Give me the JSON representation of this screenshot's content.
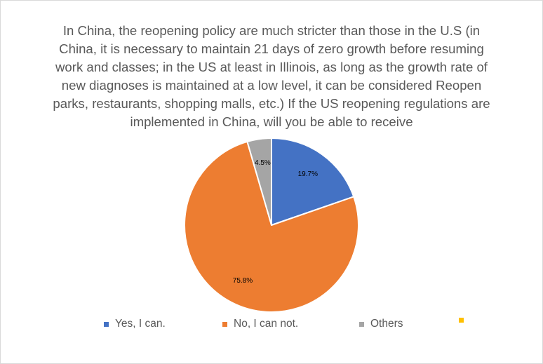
{
  "chart_data": {
    "type": "pie",
    "title_lines": [
      "In China, the reopening policy are much stricter than those in the U.S (in",
      "China, it is necessary to maintain 21 days of zero growth before resuming",
      "work and classes; in the US at least in Illinois, as long as the growth rate of",
      "new diagnoses is maintained at a low level, it can be considered  Reopen",
      "parks, restaurants, shopping malls, etc.) If the US reopening regulations are",
      "implemented in China, will you be able to receive"
    ],
    "slices": [
      {
        "name": "Yes, I can.",
        "value": 19.7,
        "label": "19.7%",
        "color": "#4472c4"
      },
      {
        "name": "No, I can not.",
        "value": 75.8,
        "label": "75.8%",
        "color": "#ed7d31"
      },
      {
        "name": "Others",
        "value": 4.5,
        "label": "4.5%",
        "color": "#a5a5a5"
      },
      {
        "name": "",
        "value": 0,
        "label": "",
        "color": "#ffc000"
      }
    ],
    "start_angle_deg": 0,
    "direction": "clockwise",
    "legend_position": "bottom"
  }
}
